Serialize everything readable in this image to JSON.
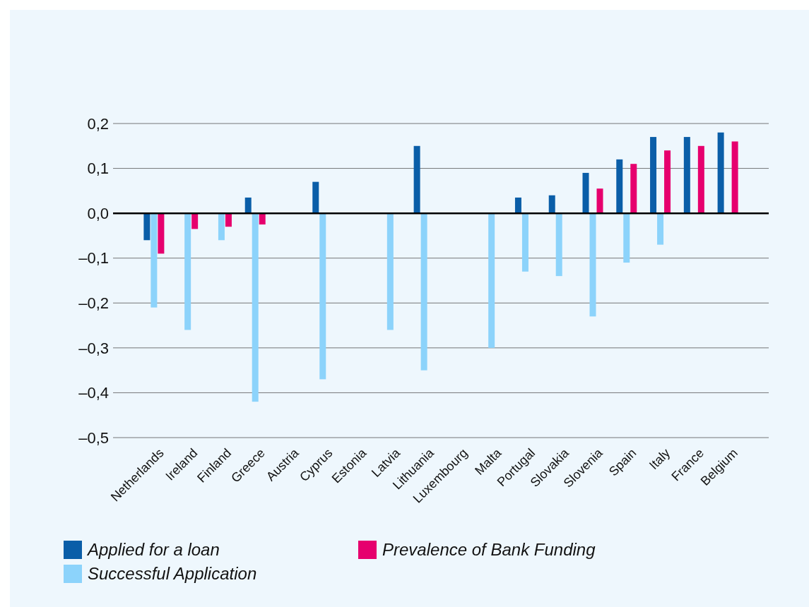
{
  "chart_data": {
    "type": "bar",
    "categories": [
      "Netherlands",
      "Ireland",
      "Finland",
      "Greece",
      "Austria",
      "Cyprus",
      "Estonia",
      "Latvia",
      "Lithuania",
      "Luxembourg",
      "Malta",
      "Portugal",
      "Slovakia",
      "Slovenia",
      "Spain",
      "Italy",
      "France",
      "Belgium"
    ],
    "series": [
      {
        "name": "Applied for a loan",
        "color": "#0a5ea8",
        "values": [
          -0.06,
          null,
          null,
          0.035,
          null,
          0.07,
          null,
          null,
          0.15,
          null,
          null,
          0.035,
          0.04,
          0.09,
          0.12,
          0.17,
          0.17,
          0.18
        ]
      },
      {
        "name": "Successful Application",
        "color": "#8cd3fb",
        "values": [
          -0.21,
          -0.26,
          -0.06,
          -0.42,
          null,
          -0.37,
          null,
          -0.26,
          -0.35,
          null,
          -0.3,
          -0.13,
          -0.14,
          -0.23,
          -0.11,
          -0.07,
          null,
          null
        ]
      },
      {
        "name": "Prevalence of Bank Funding",
        "color": "#e6006e",
        "values": [
          -0.09,
          -0.035,
          -0.03,
          -0.025,
          null,
          null,
          null,
          null,
          null,
          null,
          null,
          null,
          null,
          0.055,
          0.11,
          0.14,
          0.15,
          0.16
        ]
      }
    ],
    "ylim": [
      -0.5,
      0.2
    ],
    "yticks": [
      {
        "value": -0.5,
        "label": "–0,5"
      },
      {
        "value": -0.4,
        "label": "–0,4"
      },
      {
        "value": -0.3,
        "label": "–0,3"
      },
      {
        "value": -0.2,
        "label": "–0,2"
      },
      {
        "value": -0.1,
        "label": "–0,1"
      },
      {
        "value": 0,
        "label": "0,0"
      },
      {
        "value": 0.1,
        "label": "0,1"
      },
      {
        "value": 0.2,
        "label": "0,2"
      }
    ],
    "grid": "y",
    "legend": "bottom"
  }
}
